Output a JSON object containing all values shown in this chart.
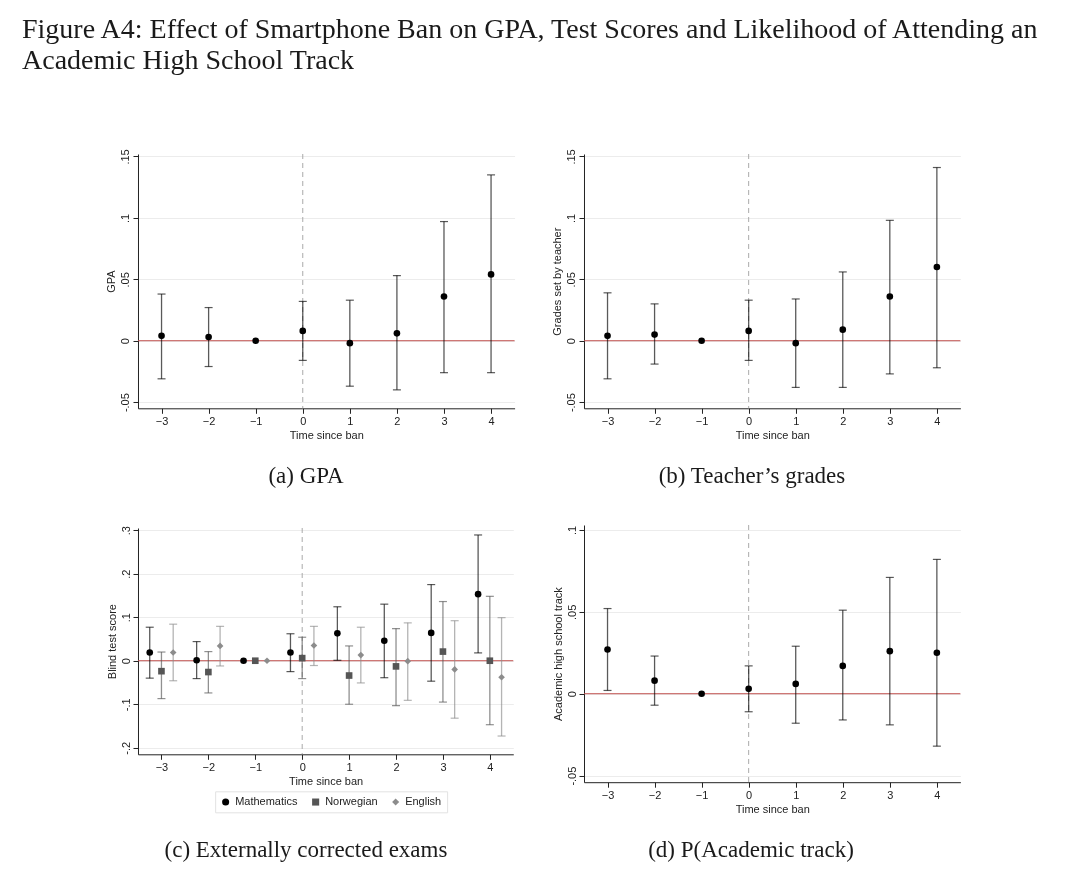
{
  "chart_data": [
    {
      "type": "scatter",
      "title": "Figure A4: Effect of Smartphone Ban on GPA, Test Scores and Likelihood of Attending an Academic High School Track",
      "xlabel": "Time since ban",
      "ylabel": "GPA",
      "x": [
        -3,
        -2,
        -1,
        0,
        1,
        2,
        3,
        4
      ],
      "xlim": [
        -3.5,
        4.5
      ],
      "xticks": [
        -3,
        -2,
        -1,
        0,
        1,
        2,
        3,
        4
      ],
      "ylim": [
        -0.055,
        0.152
      ],
      "yticks": [
        {
          "value": -0.05,
          "label": "-.05"
        },
        {
          "value": 0,
          "label": "0"
        },
        {
          "value": 0.05,
          "label": ".05"
        },
        {
          "value": 0.1,
          "label": ".1"
        },
        {
          "value": 0.15,
          "label": ".15"
        }
      ],
      "grid": "y",
      "marker": "circle",
      "ref_lines": [
        {
          "axis": "y",
          "value": 0,
          "color": "#c0504d"
        },
        {
          "axis": "x",
          "value": 0,
          "color": "#aaaaaa",
          "line_style": "dashed"
        }
      ],
      "series": [
        {
          "color": "#000000",
          "values": [
            0.004,
            0.003,
            0,
            0.008,
            -0.002,
            0.006,
            0.036,
            0.054
          ],
          "errors": [
            [
              -0.031,
              0.038
            ],
            [
              -0.021,
              0.027
            ],
            null,
            [
              -0.016,
              0.032
            ],
            [
              -0.037,
              0.033
            ],
            [
              -0.04,
              0.053
            ],
            [
              -0.026,
              0.097
            ],
            [
              -0.026,
              0.135
            ]
          ]
        }
      ],
      "annotations": [
        "(a) GPA"
      ]
    },
    {
      "type": "scatter",
      "xlabel": "Time since ban",
      "ylabel": "Grades set by teacher",
      "x": [
        -3,
        -2,
        -1,
        0,
        1,
        2,
        3,
        4
      ],
      "xlim": [
        -3.5,
        4.5
      ],
      "xticks": [
        -3,
        -2,
        -1,
        0,
        1,
        2,
        3,
        4
      ],
      "ylim": [
        -0.055,
        0.152
      ],
      "yticks": [
        {
          "value": -0.05,
          "label": "-.05"
        },
        {
          "value": 0,
          "label": "0"
        },
        {
          "value": 0.05,
          "label": ".05"
        },
        {
          "value": 0.1,
          "label": ".1"
        },
        {
          "value": 0.15,
          "label": ".15"
        }
      ],
      "grid": "y",
      "marker": "circle",
      "ref_lines": [
        {
          "axis": "y",
          "value": 0,
          "color": "#c0504d"
        },
        {
          "axis": "x",
          "value": 0,
          "color": "#aaaaaa",
          "line_style": "dashed"
        }
      ],
      "series": [
        {
          "color": "#000000",
          "values": [
            0.004,
            0.005,
            0,
            0.008,
            -0.002,
            0.009,
            0.036,
            0.06
          ],
          "errors": [
            [
              -0.031,
              0.039
            ],
            [
              -0.019,
              0.03
            ],
            null,
            [
              -0.016,
              0.033
            ],
            [
              -0.038,
              0.034
            ],
            [
              -0.038,
              0.056
            ],
            [
              -0.027,
              0.098
            ],
            [
              -0.022,
              0.141
            ]
          ]
        }
      ],
      "annotations": [
        "(b) Teacher’s grades"
      ]
    },
    {
      "type": "scatter",
      "xlabel": "Time since ban",
      "ylabel": "Blind test score",
      "xlim": [
        -3.5,
        4.5
      ],
      "xticks": [
        -3,
        -2,
        -1,
        0,
        1,
        2,
        3,
        4
      ],
      "ylim": [
        -0.215,
        0.305
      ],
      "yticks": [
        {
          "value": -0.2,
          "label": "-.2"
        },
        {
          "value": -0.1,
          "label": "-.1"
        },
        {
          "value": 0,
          "label": "0"
        },
        {
          "value": 0.1,
          "label": ".1"
        },
        {
          "value": 0.2,
          "label": ".2"
        },
        {
          "value": 0.3,
          "label": ".3"
        }
      ],
      "grid": "y",
      "legend": "bottom",
      "ref_lines": [
        {
          "axis": "y",
          "value": 0,
          "color": "#c0504d"
        },
        {
          "axis": "x",
          "value": 0,
          "color": "#aaaaaa",
          "line_style": "dashed"
        }
      ],
      "series": [
        {
          "name": "Mathematics",
          "color": "#000000",
          "marker": "circle",
          "x": [
            -3.25,
            -2.25,
            -1.25,
            -0.25,
            0.75,
            1.75,
            2.75,
            3.75
          ],
          "values": [
            0.019,
            0.001,
            0,
            0.019,
            0.063,
            0.046,
            0.064,
            0.153
          ],
          "errors": [
            [
              -0.04,
              0.077
            ],
            [
              -0.041,
              0.044
            ],
            null,
            [
              -0.025,
              0.062
            ],
            [
              0.001,
              0.124
            ],
            [
              -0.039,
              0.13
            ],
            [
              -0.047,
              0.175
            ],
            [
              0.018,
              0.289
            ]
          ]
        },
        {
          "name": "Norwegian",
          "color": "#555555",
          "marker": "square",
          "x": [
            -3,
            -2,
            -1,
            0,
            1,
            2,
            3,
            4
          ],
          "values": [
            -0.024,
            -0.026,
            0,
            0.006,
            -0.034,
            -0.013,
            0.021,
            0
          ],
          "errors": [
            [
              -0.087,
              0.02
            ],
            [
              -0.074,
              0.021
            ],
            null,
            [
              -0.041,
              0.054
            ],
            [
              -0.1,
              0.034
            ],
            [
              -0.103,
              0.074
            ],
            [
              -0.095,
              0.136
            ],
            [
              -0.147,
              0.148
            ]
          ]
        },
        {
          "name": "English",
          "color": "#8c8c8c",
          "marker": "diamond",
          "x": [
            -2.75,
            -1.75,
            -0.75,
            0.25,
            1.25,
            2.25,
            3.25,
            4.25
          ],
          "values": [
            0.019,
            0.034,
            0,
            0.035,
            0.013,
            -0.001,
            -0.02,
            -0.038
          ],
          "errors": [
            [
              -0.046,
              0.084
            ],
            [
              -0.012,
              0.079
            ],
            null,
            [
              -0.011,
              0.079
            ],
            [
              -0.051,
              0.077
            ],
            [
              -0.091,
              0.087
            ],
            [
              -0.132,
              0.092
            ],
            [
              -0.173,
              0.099
            ]
          ]
        }
      ],
      "annotations": [
        "(c) Externally corrected exams"
      ]
    },
    {
      "type": "scatter",
      "xlabel": "Time since ban",
      "ylabel": "Academic high school track",
      "x": [
        -3,
        -2,
        -1,
        0,
        1,
        2,
        3,
        4
      ],
      "xlim": [
        -3.5,
        4.5
      ],
      "xticks": [
        -3,
        -2,
        -1,
        0,
        1,
        2,
        3,
        4
      ],
      "ylim": [
        -0.054,
        0.103
      ],
      "yticks": [
        {
          "value": -0.05,
          "label": "-.05"
        },
        {
          "value": 0,
          "label": "0"
        },
        {
          "value": 0.05,
          "label": ".05"
        },
        {
          "value": 0.1,
          "label": ".1"
        }
      ],
      "grid": "y",
      "marker": "circle",
      "ref_lines": [
        {
          "axis": "y",
          "value": 0,
          "color": "#c0504d"
        },
        {
          "axis": "x",
          "value": 0,
          "color": "#aaaaaa",
          "line_style": "dashed"
        }
      ],
      "series": [
        {
          "color": "#000000",
          "values": [
            0.027,
            0.008,
            0,
            0.003,
            0.006,
            0.017,
            0.026,
            0.025
          ],
          "errors": [
            [
              0.002,
              0.052
            ],
            [
              -0.007,
              0.023
            ],
            null,
            [
              -0.011,
              0.017
            ],
            [
              -0.018,
              0.029
            ],
            [
              -0.016,
              0.051
            ],
            [
              -0.019,
              0.071
            ],
            [
              -0.032,
              0.082
            ]
          ]
        }
      ],
      "annotations": [
        "(d) P(Academic track)"
      ]
    }
  ]
}
